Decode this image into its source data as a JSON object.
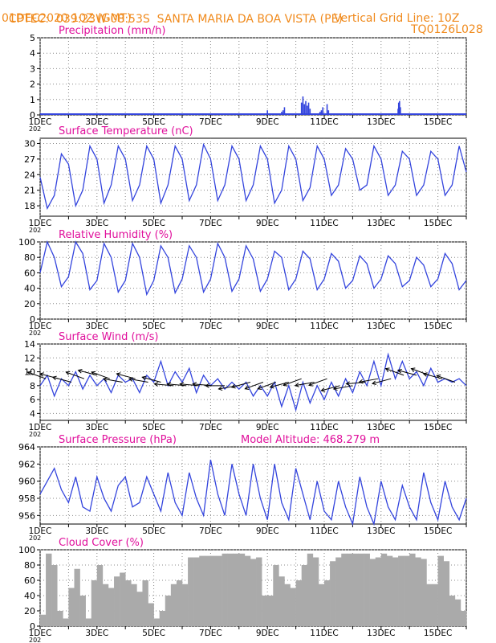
{
  "header": {
    "source": "CPTEC:",
    "coords": "039:23W-08:53S",
    "location": "SANTA MARIA DA BOA VISTA (PE)",
    "run": "01DEC2020 10Z (GMT)",
    "grid_note": "Vertical Grid Line: 10Z",
    "model_code": "TQ0126L028"
  },
  "x_ticks": [
    "1DEC",
    "3DEC",
    "5DEC",
    "7DEC",
    "9DEC",
    "11DEC",
    "13DEC",
    "15DEC"
  ],
  "x_tick_days": [
    1,
    3,
    5,
    7,
    9,
    11,
    13,
    15
  ],
  "x_range_days": [
    1,
    16
  ],
  "year_stub": "202",
  "colors": {
    "line": "#3344dd",
    "title": "#e0109c",
    "header": "#f08a1c",
    "cloud": "#aaaaaa",
    "grid": "#888888"
  },
  "chart_data": [
    {
      "id": "precip",
      "type": "bar",
      "title": "Precipitation (mm/h)",
      "units": "mm/h",
      "ylim": [
        0,
        5
      ],
      "yticks": [
        "0",
        "1",
        "2",
        "3",
        "4",
        "5"
      ],
      "x_day": [
        8.9,
        9.0,
        9.5,
        9.55,
        9.6,
        10.2,
        10.25,
        10.3,
        10.35,
        10.4,
        10.45,
        10.5,
        10.85,
        10.9,
        10.95,
        11.1,
        11.15,
        13.6,
        13.62,
        13.65,
        13.68
      ],
      "values": [
        0.1,
        0.3,
        0.2,
        0.3,
        0.5,
        0.8,
        1.2,
        0.7,
        0.9,
        0.6,
        0.8,
        0.4,
        0.2,
        0.3,
        0.5,
        0.7,
        0.3,
        0.4,
        0.8,
        0.9,
        0.5
      ]
    },
    {
      "id": "temp",
      "type": "line",
      "title": "Surface Temperature (nC)",
      "units": "nC",
      "ylim": [
        16,
        31
      ],
      "yticks": [
        "18",
        "21",
        "24",
        "27",
        "30"
      ],
      "ytick_values": [
        18,
        21,
        24,
        27,
        30
      ],
      "x_day": [
        1.0,
        1.25,
        1.5,
        1.75,
        2.0,
        2.25,
        2.5,
        2.75,
        3.0,
        3.25,
        3.5,
        3.75,
        4.0,
        4.25,
        4.5,
        4.75,
        5.0,
        5.25,
        5.5,
        5.75,
        6.0,
        6.25,
        6.5,
        6.75,
        7.0,
        7.25,
        7.5,
        7.75,
        8.0,
        8.25,
        8.5,
        8.75,
        9.0,
        9.25,
        9.5,
        9.75,
        10.0,
        10.25,
        10.5,
        10.75,
        11.0,
        11.25,
        11.5,
        11.75,
        12.0,
        12.25,
        12.5,
        12.75,
        13.0,
        13.25,
        13.5,
        13.75,
        14.0,
        14.25,
        14.5,
        14.75,
        15.0,
        15.25,
        15.5,
        15.75,
        16.0
      ],
      "values": [
        23.5,
        17.5,
        20,
        28,
        26,
        18,
        21,
        29.5,
        27,
        18.5,
        22,
        29.5,
        27,
        19,
        22,
        29.5,
        27,
        18.5,
        22,
        29.5,
        27,
        19,
        22,
        29.8,
        27,
        19,
        22,
        29.5,
        27,
        19,
        22,
        29.5,
        27,
        18.5,
        21,
        29.5,
        27,
        19,
        21.5,
        29.5,
        27,
        20,
        22,
        29,
        27,
        21,
        22,
        29.5,
        27,
        20,
        22,
        28.5,
        27,
        20,
        22,
        28.5,
        27,
        20,
        22,
        29.5,
        24.5
      ]
    },
    {
      "id": "rh",
      "type": "line",
      "title": "Relative Humidity (%)",
      "units": "%",
      "ylim": [
        0,
        100
      ],
      "yticks": [
        "0",
        "20",
        "40",
        "60",
        "80",
        "100"
      ],
      "ytick_values": [
        0,
        20,
        40,
        60,
        80,
        100
      ],
      "x_day": [
        1.0,
        1.25,
        1.5,
        1.75,
        2.0,
        2.25,
        2.5,
        2.75,
        3.0,
        3.25,
        3.5,
        3.75,
        4.0,
        4.25,
        4.5,
        4.75,
        5.0,
        5.25,
        5.5,
        5.75,
        6.0,
        6.25,
        6.5,
        6.75,
        7.0,
        7.25,
        7.5,
        7.75,
        8.0,
        8.25,
        8.5,
        8.75,
        9.0,
        9.25,
        9.5,
        9.75,
        10.0,
        10.25,
        10.5,
        10.75,
        11.0,
        11.25,
        11.5,
        11.75,
        12.0,
        12.25,
        12.5,
        12.75,
        13.0,
        13.25,
        13.5,
        13.75,
        14.0,
        14.25,
        14.5,
        14.75,
        15.0,
        15.25,
        15.5,
        15.75,
        16.0
      ],
      "values": [
        60,
        100,
        80,
        42,
        55,
        100,
        85,
        38,
        50,
        98,
        80,
        35,
        50,
        98,
        80,
        32,
        50,
        95,
        80,
        34,
        52,
        95,
        80,
        35,
        52,
        98,
        80,
        36,
        52,
        95,
        78,
        36,
        52,
        88,
        80,
        38,
        52,
        88,
        78,
        38,
        52,
        85,
        75,
        40,
        50,
        82,
        72,
        40,
        52,
        82,
        72,
        42,
        50,
        80,
        70,
        42,
        52,
        85,
        72,
        38,
        50
      ]
    },
    {
      "id": "wind",
      "type": "line",
      "title": "Surface Wind (m/s)",
      "units": "m/s",
      "ylim": [
        3,
        14
      ],
      "yticks": [
        "4",
        "6",
        "8",
        "10",
        "12",
        "14"
      ],
      "ytick_values": [
        4,
        6,
        8,
        10,
        12,
        14
      ],
      "x_day": [
        1.0,
        1.25,
        1.5,
        1.75,
        2.0,
        2.25,
        2.5,
        2.75,
        3.0,
        3.25,
        3.5,
        3.75,
        4.0,
        4.25,
        4.5,
        4.75,
        5.0,
        5.25,
        5.5,
        5.75,
        6.0,
        6.25,
        6.5,
        6.75,
        7.0,
        7.25,
        7.5,
        7.75,
        8.0,
        8.25,
        8.5,
        8.75,
        9.0,
        9.25,
        9.5,
        9.75,
        10.0,
        10.25,
        10.5,
        10.75,
        11.0,
        11.25,
        11.5,
        11.75,
        12.0,
        12.25,
        12.5,
        12.75,
        13.0,
        13.25,
        13.5,
        13.75,
        14.0,
        14.25,
        14.5,
        14.75,
        15.0,
        15.25,
        15.5,
        15.75,
        16.0
      ],
      "values": [
        8,
        9.5,
        6.5,
        9,
        8,
        10,
        7.5,
        9.5,
        8,
        9,
        7,
        9.5,
        8.5,
        9,
        7,
        9.5,
        8.5,
        11.5,
        8,
        10,
        8.5,
        10.5,
        7,
        9.5,
        8,
        9,
        7.5,
        8.5,
        7.5,
        8.5,
        6.5,
        8,
        6.5,
        8.5,
        5,
        8,
        4.5,
        8.5,
        5.5,
        8,
        6,
        8.5,
        6.5,
        9,
        7,
        10,
        8,
        11.5,
        8,
        12.5,
        9,
        11.5,
        9,
        10,
        8,
        10.5,
        8.5,
        9,
        8.5,
        9,
        8
      ],
      "arrows_at_days": [
        1.2,
        1.65,
        2.1,
        2.55,
        3.0,
        3.45,
        3.9,
        4.35,
        4.8,
        5.25,
        5.7,
        6.15,
        6.6,
        7.05,
        7.5,
        7.95,
        8.4,
        8.85,
        9.3,
        9.75,
        10.2,
        10.65,
        11.1,
        11.55,
        12.0,
        12.45,
        12.9,
        13.35,
        13.8,
        14.25,
        14.7,
        15.15,
        15.6
      ],
      "arrow_speed": [
        9,
        9,
        8.5,
        9,
        9.5,
        9,
        8.5,
        9,
        8.5,
        8.5,
        8,
        8,
        8,
        8,
        8,
        8,
        8.5,
        8.5,
        8.5,
        8.5,
        9,
        8.5,
        9,
        8,
        8,
        8.5,
        9,
        9,
        9.5,
        9.5,
        9.5,
        9,
        8.5
      ],
      "arrow_dir_deg": [
        160,
        165,
        165,
        160,
        165,
        160,
        170,
        165,
        170,
        165,
        175,
        175,
        175,
        175,
        180,
        190,
        195,
        200,
        200,
        195,
        200,
        190,
        200,
        195,
        190,
        185,
        190,
        195,
        160,
        165,
        160,
        165,
        160
      ]
    },
    {
      "id": "pres",
      "type": "line",
      "title": "Surface Pressure (hPa)",
      "annotation": "Model Altitude: 468.279 m",
      "units": "hPa",
      "ylim": [
        955,
        964
      ],
      "yticks": [
        "956",
        "958",
        "960",
        "962",
        "964"
      ],
      "ytick_values": [
        956,
        958,
        960,
        962,
        964
      ],
      "x_day": [
        1.0,
        1.25,
        1.5,
        1.75,
        2.0,
        2.25,
        2.5,
        2.75,
        3.0,
        3.25,
        3.5,
        3.75,
        4.0,
        4.25,
        4.5,
        4.75,
        5.0,
        5.25,
        5.5,
        5.75,
        6.0,
        6.25,
        6.5,
        6.75,
        7.0,
        7.25,
        7.5,
        7.75,
        8.0,
        8.25,
        8.5,
        8.75,
        9.0,
        9.25,
        9.5,
        9.75,
        10.0,
        10.25,
        10.5,
        10.75,
        11.0,
        11.25,
        11.5,
        11.75,
        12.0,
        12.25,
        12.5,
        12.75,
        13.0,
        13.25,
        13.5,
        13.75,
        14.0,
        14.25,
        14.5,
        14.75,
        15.0,
        15.25,
        15.5,
        15.75,
        16.0
      ],
      "values": [
        958.5,
        960,
        961.5,
        959,
        957.5,
        960.5,
        957,
        956.5,
        960.5,
        958,
        956.5,
        959.5,
        960.5,
        957,
        957.5,
        960.5,
        958.5,
        956.5,
        961,
        957.5,
        956,
        961,
        958,
        956,
        962.5,
        958.5,
        956,
        962,
        958.5,
        956,
        962,
        958,
        955.5,
        962,
        957.5,
        955.5,
        961.5,
        958.5,
        955.5,
        960,
        956.5,
        955.5,
        960,
        957,
        955,
        960.5,
        957,
        955,
        960,
        957,
        955.5,
        959.5,
        957,
        955.5,
        961,
        957.5,
        955.5,
        960,
        957,
        955.5,
        958
      ]
    },
    {
      "id": "cloud",
      "type": "bar",
      "title": "Cloud Cover (%)",
      "units": "%",
      "ylim": [
        0,
        100
      ],
      "yticks": [
        "0",
        "20",
        "40",
        "60",
        "80",
        "100"
      ],
      "ytick_values": [
        0,
        20,
        40,
        60,
        80,
        100
      ],
      "x_day": [
        1.0,
        1.2,
        1.4,
        1.6,
        1.8,
        2.0,
        2.2,
        2.4,
        2.6,
        2.8,
        3.0,
        3.2,
        3.4,
        3.6,
        3.8,
        4.0,
        4.2,
        4.4,
        4.6,
        4.8,
        5.0,
        5.2,
        5.4,
        5.6,
        5.8,
        6.0,
        6.2,
        6.4,
        6.6,
        6.8,
        7.0,
        7.2,
        7.4,
        7.6,
        7.8,
        8.0,
        8.2,
        8.4,
        8.6,
        8.8,
        9.0,
        9.2,
        9.4,
        9.6,
        9.8,
        10.0,
        10.2,
        10.4,
        10.6,
        10.8,
        11.0,
        11.2,
        11.4,
        11.6,
        11.8,
        12.0,
        12.2,
        12.4,
        12.6,
        12.8,
        13.0,
        13.2,
        13.4,
        13.6,
        13.8,
        14.0,
        14.2,
        14.4,
        14.6,
        14.8,
        15.0,
        15.2,
        15.4,
        15.6,
        15.8
      ],
      "values": [
        15,
        95,
        80,
        20,
        10,
        50,
        75,
        40,
        10,
        60,
        80,
        55,
        50,
        65,
        70,
        60,
        55,
        45,
        60,
        30,
        10,
        20,
        40,
        55,
        60,
        55,
        90,
        90,
        92,
        92,
        92,
        92,
        95,
        95,
        95,
        95,
        92,
        88,
        90,
        40,
        40,
        80,
        65,
        55,
        50,
        60,
        80,
        95,
        90,
        55,
        60,
        85,
        90,
        95,
        95,
        95,
        95,
        95,
        88,
        90,
        95,
        92,
        90,
        92,
        92,
        95,
        90,
        88,
        55,
        55,
        92,
        85,
        40,
        35,
        20
      ]
    }
  ]
}
